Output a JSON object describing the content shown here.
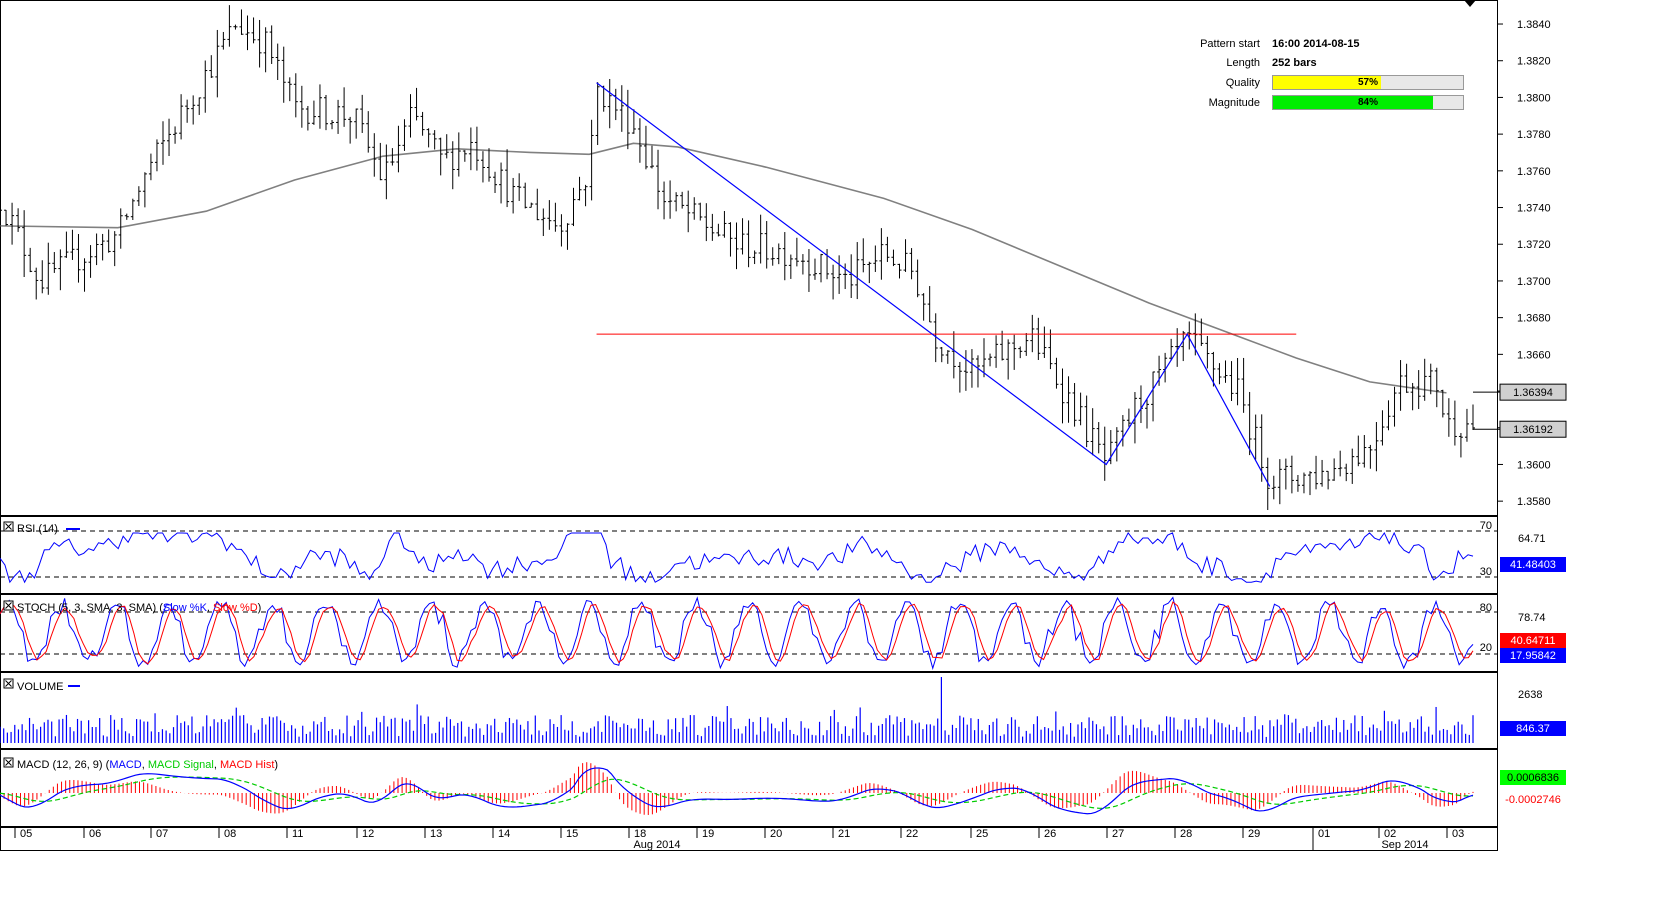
{
  "pattern_info": {
    "start_label": "Pattern start",
    "start_value": "16:00 2014-08-15",
    "length_label": "Length",
    "length_value": "252 bars",
    "quality_label": "Quality",
    "quality_value": "57%",
    "quality_fraction": 0.57,
    "quality_color": "#ffff00",
    "magnitude_label": "Magnitude",
    "magnitude_value": "84%",
    "magnitude_fraction": 0.84,
    "magnitude_color": "#00ee00"
  },
  "chart_data": [
    {
      "type": "bar",
      "name": "price",
      "y_ticks": [
        "1.3840",
        "1.3820",
        "1.3800",
        "1.3780",
        "1.3760",
        "1.3740",
        "1.3720",
        "1.3700",
        "1.3680",
        "1.3660",
        "1.3640",
        "1.3620",
        "1.3600",
        "1.3580"
      ],
      "ylim": [
        1.3573,
        1.3852
      ],
      "last_price": "1.36192",
      "last_price_value": 1.36192,
      "ma_value": "1.36394",
      "ma_value_num": 1.36394,
      "resistance_level": 1.3671,
      "pattern_points": [
        [
          0.405,
          1.3808
        ],
        [
          0.751,
          1.36
        ],
        [
          0.806,
          1.3671
        ],
        [
          0.862,
          1.3588
        ]
      ],
      "ma_points": [
        [
          0.0,
          1.373
        ],
        [
          0.08,
          1.3729
        ],
        [
          0.14,
          1.3738
        ],
        [
          0.2,
          1.3755
        ],
        [
          0.26,
          1.3768
        ],
        [
          0.31,
          1.3772
        ],
        [
          0.36,
          1.377
        ],
        [
          0.4,
          1.3769
        ],
        [
          0.43,
          1.3775
        ],
        [
          0.46,
          1.3773
        ],
        [
          0.52,
          1.3762
        ],
        [
          0.6,
          1.3745
        ],
        [
          0.66,
          1.3728
        ],
        [
          0.72,
          1.3708
        ],
        [
          0.78,
          1.3688
        ],
        [
          0.84,
          1.367
        ],
        [
          0.88,
          1.3658
        ],
        [
          0.93,
          1.3645
        ],
        [
          0.982,
          1.3639
        ]
      ],
      "colors": {
        "price": "#000000",
        "ma": "#808080",
        "pattern": "#0000ff",
        "resistance": "#ff0000",
        "label_bg": "#d0d0d0"
      }
    },
    {
      "type": "line",
      "name": "RSI",
      "label": "RSI (14)",
      "levels": [
        "70",
        "30"
      ],
      "value_top": "64.71",
      "value_current": "41.48403",
      "color": "#0000ff"
    },
    {
      "type": "line",
      "name": "STOCH",
      "label_prefix": "STOCH (5, 3, SMA, 3, SMA) (",
      "series": [
        {
          "name": "Slow %K",
          "color": "#0000ff"
        },
        {
          "name": "Slow %D",
          "color": "#ff0000"
        }
      ],
      "label_suffix": ")",
      "levels": [
        "80",
        "20"
      ],
      "value_top": "78.74",
      "value_k": "40.64711",
      "value_d": "17.95842"
    },
    {
      "type": "bar",
      "name": "VOLUME",
      "label": "VOLUME",
      "value_top": "2638",
      "value_current": "846.37",
      "color": "#0000ff"
    },
    {
      "type": "line",
      "name": "MACD",
      "label_prefix": "MACD (12, 26, 9) (",
      "series": [
        {
          "name": "MACD",
          "color": "#0000ff"
        },
        {
          "name": "MACD Signal",
          "color": "#00cc00"
        },
        {
          "name": "MACD Hist",
          "color": "#ff0000"
        }
      ],
      "label_suffix": ")",
      "value_macd": "0.0006836",
      "value_hist": "-0.0002746"
    }
  ],
  "x_axis": {
    "day_labels": [
      "05",
      "06",
      "07",
      "08",
      "11",
      "12",
      "13",
      "14",
      "15",
      "18",
      "19",
      "20",
      "21",
      "22",
      "25",
      "26",
      "27",
      "28",
      "29",
      "01",
      "02",
      "03"
    ],
    "month_labels": [
      "Aug 2014",
      "Sep 2014"
    ]
  }
}
